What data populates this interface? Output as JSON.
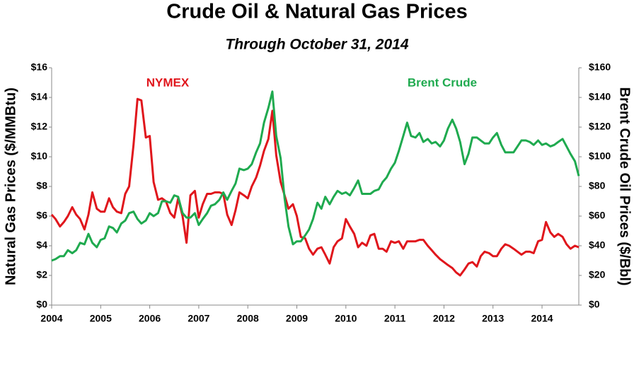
{
  "chart_data": {
    "type": "line",
    "title": "Crude Oil & Natural Gas Prices",
    "subtitle": "Through October 31, 2014",
    "y_label": "Natural Gas Prices ($/MMBtu)",
    "y2_label": "Brent Crude Oil Prices ($/Bbl)",
    "xlim": [
      2004,
      2014.75
    ],
    "xticks": [
      2004,
      2005,
      2006,
      2007,
      2008,
      2009,
      2010,
      2011,
      2012,
      2013,
      2014
    ],
    "ylim": [
      0,
      16
    ],
    "yticks": [
      {
        "value": 0,
        "label": "$0"
      },
      {
        "value": 2,
        "label": "$2"
      },
      {
        "value": 4,
        "label": "$4"
      },
      {
        "value": 6,
        "label": "$6"
      },
      {
        "value": 8,
        "label": "$8"
      },
      {
        "value": 10,
        "label": "$10"
      },
      {
        "value": 12,
        "label": "$12"
      },
      {
        "value": 14,
        "label": "$14"
      },
      {
        "value": 16,
        "label": "$16"
      }
    ],
    "y2lim": [
      0,
      160
    ],
    "y2ticks": [
      {
        "value": 0,
        "label": "$0"
      },
      {
        "value": 20,
        "label": "$20"
      },
      {
        "value": 40,
        "label": "$40"
      },
      {
        "value": 60,
        "label": "$60"
      },
      {
        "value": 80,
        "label": "$80"
      },
      {
        "value": 100,
        "label": "$100"
      },
      {
        "value": 120,
        "label": "$120"
      },
      {
        "value": 140,
        "label": "$140"
      },
      {
        "value": 160,
        "label": "$160"
      }
    ],
    "grid": false,
    "x": [
      2004,
      2004.08,
      2004.17,
      2004.25,
      2004.33,
      2004.42,
      2004.5,
      2004.58,
      2004.67,
      2004.75,
      2004.83,
      2004.92,
      2005,
      2005.08,
      2005.17,
      2005.25,
      2005.33,
      2005.42,
      2005.5,
      2005.58,
      2005.67,
      2005.75,
      2005.83,
      2005.92,
      2006,
      2006.08,
      2006.17,
      2006.25,
      2006.33,
      2006.42,
      2006.5,
      2006.58,
      2006.67,
      2006.75,
      2006.83,
      2006.92,
      2007,
      2007.08,
      2007.17,
      2007.25,
      2007.33,
      2007.42,
      2007.5,
      2007.58,
      2007.67,
      2007.75,
      2007.83,
      2007.92,
      2008,
      2008.08,
      2008.17,
      2008.25,
      2008.33,
      2008.42,
      2008.5,
      2008.58,
      2008.67,
      2008.75,
      2008.83,
      2008.92,
      2009,
      2009.08,
      2009.17,
      2009.25,
      2009.33,
      2009.42,
      2009.5,
      2009.58,
      2009.67,
      2009.75,
      2009.83,
      2009.92,
      2010,
      2010.08,
      2010.17,
      2010.25,
      2010.33,
      2010.42,
      2010.5,
      2010.58,
      2010.67,
      2010.75,
      2010.83,
      2010.92,
      2011,
      2011.08,
      2011.17,
      2011.25,
      2011.33,
      2011.42,
      2011.5,
      2011.58,
      2011.67,
      2011.75,
      2011.83,
      2011.92,
      2012,
      2012.08,
      2012.17,
      2012.25,
      2012.33,
      2012.42,
      2012.5,
      2012.58,
      2012.67,
      2012.75,
      2012.83,
      2012.92,
      2013,
      2013.08,
      2013.17,
      2013.25,
      2013.33,
      2013.42,
      2013.5,
      2013.58,
      2013.67,
      2013.75,
      2013.83,
      2013.92,
      2014,
      2014.08,
      2014.17,
      2014.25,
      2014.33,
      2014.42,
      2014.5,
      2014.58,
      2014.67,
      2014.75
    ],
    "series": [
      {
        "name": "NYMEX",
        "color": "#e0161c",
        "values": [
          6.1,
          5.8,
          5.3,
          5.6,
          6.0,
          6.6,
          6.1,
          5.8,
          5.1,
          6.1,
          7.6,
          6.5,
          6.3,
          6.3,
          7.2,
          6.6,
          6.3,
          6.2,
          7.5,
          8.0,
          10.8,
          13.9,
          13.8,
          11.3,
          11.4,
          8.3,
          7.1,
          7.2,
          7.0,
          6.2,
          5.9,
          7.2,
          6.0,
          4.2,
          7.4,
          7.7,
          5.9,
          6.8,
          7.5,
          7.5,
          7.6,
          7.6,
          7.5,
          6.1,
          5.4,
          6.4,
          7.6,
          7.4,
          7.2,
          8.0,
          8.6,
          9.4,
          10.4,
          11.2,
          13.1,
          10.1,
          8.3,
          7.4,
          6.5,
          6.8,
          6.0,
          4.6,
          4.5,
          3.8,
          3.4,
          3.8,
          3.9,
          3.4,
          2.8,
          3.9,
          4.3,
          4.5,
          5.8,
          5.3,
          4.8,
          3.9,
          4.2,
          4.0,
          4.7,
          4.8,
          3.8,
          3.8,
          3.6,
          4.3,
          4.2,
          4.3,
          3.8,
          4.3,
          4.3,
          4.3,
          4.4,
          4.4,
          4.0,
          3.7,
          3.4,
          3.1,
          2.9,
          2.7,
          2.5,
          2.2,
          2.0,
          2.4,
          2.8,
          2.9,
          2.6,
          3.3,
          3.6,
          3.5,
          3.3,
          3.3,
          3.8,
          4.1,
          4.0,
          3.8,
          3.6,
          3.4,
          3.6,
          3.6,
          3.5,
          4.3,
          4.4,
          5.6,
          4.9,
          4.6,
          4.8,
          4.6,
          4.1,
          3.8,
          4.0,
          3.9
        ]
      },
      {
        "name": "Brent Crude",
        "color": "#1faa4f",
        "axis": "y2",
        "values": [
          30,
          31,
          33,
          33,
          37,
          35,
          37,
          42,
          41,
          48,
          42,
          39,
          44,
          45,
          53,
          52,
          49,
          55,
          57,
          62,
          63,
          58,
          55,
          57,
          62,
          60,
          62,
          70,
          70,
          69,
          74,
          73,
          62,
          59,
          59,
          62,
          54,
          58,
          62,
          67,
          68,
          71,
          76,
          71,
          77,
          82,
          92,
          91,
          92,
          95,
          103,
          109,
          123,
          133,
          144,
          114,
          99,
          72,
          53,
          41,
          43,
          43,
          47,
          51,
          58,
          69,
          65,
          73,
          68,
          73,
          77,
          75,
          76,
          74,
          79,
          84,
          75,
          75,
          75,
          77,
          78,
          83,
          86,
          92,
          96,
          104,
          114,
          123,
          114,
          113,
          116,
          110,
          112,
          109,
          110,
          107,
          111,
          119,
          125,
          119,
          110,
          95,
          102,
          113,
          113,
          111,
          109,
          109,
          113,
          116,
          108,
          103,
          103,
          103,
          107,
          111,
          111,
          110,
          108,
          111,
          108,
          109,
          107,
          108,
          110,
          112,
          107,
          102,
          97,
          87
        ]
      }
    ]
  }
}
